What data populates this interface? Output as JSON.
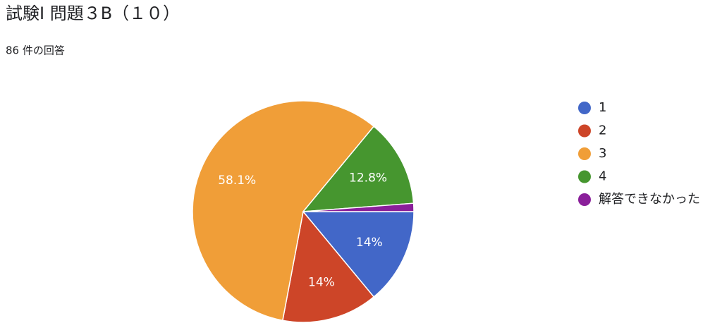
{
  "chart_data": {
    "type": "pie",
    "title": "試験Ⅰ 問題３B（１０）",
    "subtitle": "86 件の回答",
    "categories": [
      "1",
      "2",
      "3",
      "4",
      "解答できなかった"
    ],
    "values": [
      14,
      14,
      58.1,
      12.8,
      1.2
    ],
    "value_labels": [
      "14%",
      "14%",
      "58.1%",
      "12.8%",
      null
    ],
    "colors": [
      "#4267c8",
      "#cd4528",
      "#f09e38",
      "#46962f",
      "#8a1f9a"
    ],
    "legend": "right"
  }
}
